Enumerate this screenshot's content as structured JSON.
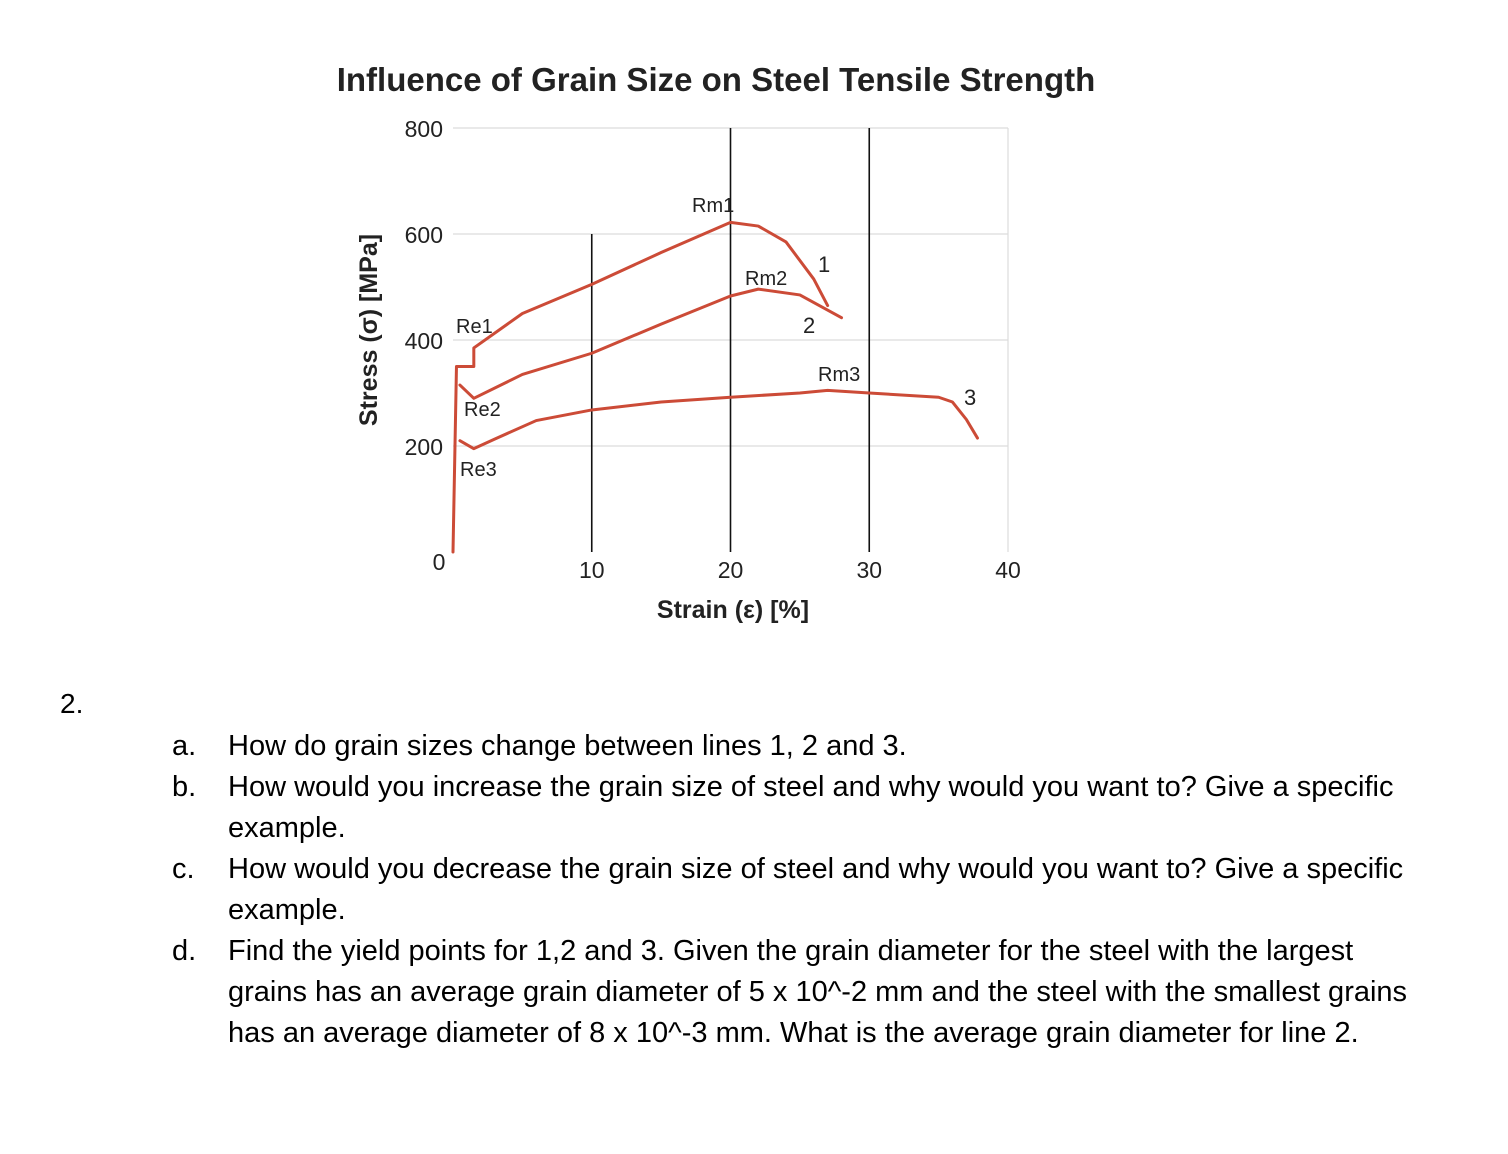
{
  "chart_data": {
    "type": "line",
    "title": "Influence of Grain Size on Steel Tensile Strength",
    "xlabel": "Strain (ε) [%]",
    "ylabel": "Stress (σ) [MPa]",
    "xlim": [
      0,
      40
    ],
    "ylim": [
      0,
      800
    ],
    "x_ticks": [
      "10",
      "20",
      "30",
      "40"
    ],
    "x_origin_tick": "0",
    "y_ticks": [
      "200",
      "400",
      "600",
      "800"
    ],
    "grid": true,
    "series": [
      {
        "name": "1",
        "color": "#cc4b37",
        "points": [
          [
            0,
            0
          ],
          [
            0.25,
            350
          ],
          [
            1.5,
            350
          ],
          [
            1.5,
            385
          ],
          [
            5,
            450
          ],
          [
            10,
            505
          ],
          [
            15,
            565
          ],
          [
            20,
            622
          ],
          [
            22,
            615
          ],
          [
            24,
            585
          ],
          [
            26,
            515
          ],
          [
            27,
            465
          ]
        ],
        "yield_label": "Re1",
        "max_label": "Rm1"
      },
      {
        "name": "2",
        "color": "#cc4b37",
        "points": [
          [
            0.5,
            315
          ],
          [
            1.5,
            290
          ],
          [
            5,
            335
          ],
          [
            10,
            375
          ],
          [
            15,
            430
          ],
          [
            20,
            483
          ],
          [
            22,
            496
          ],
          [
            25,
            485
          ],
          [
            28,
            442
          ]
        ],
        "yield_label": "Re2",
        "max_label": "Rm2"
      },
      {
        "name": "3",
        "color": "#cc4b37",
        "points": [
          [
            0.5,
            210
          ],
          [
            1.5,
            195
          ],
          [
            3,
            213
          ],
          [
            6,
            248
          ],
          [
            10,
            268
          ],
          [
            15,
            283
          ],
          [
            20,
            292
          ],
          [
            25,
            300
          ],
          [
            27,
            305
          ],
          [
            30,
            300
          ],
          [
            35,
            292
          ],
          [
            36,
            283
          ],
          [
            37,
            250
          ],
          [
            37.8,
            215
          ]
        ],
        "yield_label": "Re3",
        "max_label": "Rm3"
      }
    ]
  },
  "questions": {
    "number": "2.",
    "items": [
      {
        "letter": "a.",
        "text": "How do grain sizes change between lines 1, 2 and 3."
      },
      {
        "letter": "b.",
        "text": "How would you increase the grain size of steel and why would you want to? Give a specific example."
      },
      {
        "letter": "c.",
        "text": "How would you decrease the grain size of steel and why would you want to? Give a specific example."
      },
      {
        "letter": "d.",
        "text": "Find the yield points for 1,2 and 3. Given the grain diameter for the steel with the largest grains has an average grain diameter of 5 x 10^-2 mm and the steel with the smallest grains has an average diameter of 8 x 10^-3 mm. What is the average grain diameter for line 2."
      }
    ]
  }
}
